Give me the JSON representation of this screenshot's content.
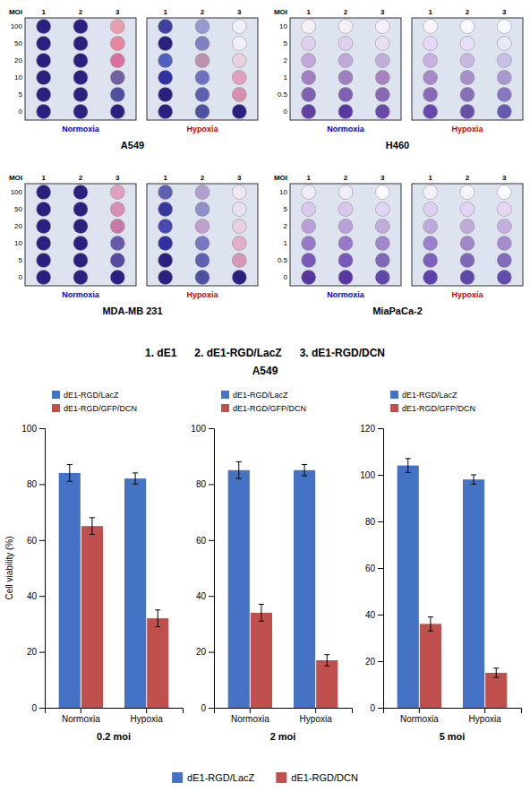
{
  "chart_data": [
    {
      "type": "plate",
      "title": "A549",
      "ylabel": "MOI",
      "x": [
        1,
        2,
        3
      ],
      "categories": [
        "100",
        "50",
        "20",
        "10",
        "5",
        "0"
      ],
      "series": [
        {
          "name": "Normoxia",
          "color": "#0000CC",
          "colors": [
            [
              "#2a2080",
              "#2a2080",
              "#e8a0b0"
            ],
            [
              "#2a2080",
              "#2a2080",
              "#e888a0"
            ],
            [
              "#2a2080",
              "#2a2080",
              "#d870a0"
            ],
            [
              "#2a2080",
              "#2a2080",
              "#7060a0"
            ],
            [
              "#2a2080",
              "#2a2080",
              "#5050a0"
            ],
            [
              "#2a2080",
              "#2a2080",
              "#2a2080"
            ]
          ]
        },
        {
          "name": "Hypoxia",
          "color": "#CC0000",
          "colors": [
            [
              "#4040a0",
              "#9898d0",
              "#f0f0f8"
            ],
            [
              "#2a2080",
              "#8080c0",
              "#f0f0f8"
            ],
            [
              "#5060c0",
              "#c090b0",
              "#e8d0e0"
            ],
            [
              "#3030a0",
              "#7070c0",
              "#e0a0c0"
            ],
            [
              "#2a2080",
              "#6060b0",
              "#d890b0"
            ],
            [
              "#2a2080",
              "#5050a0",
              "#2a2080"
            ]
          ]
        }
      ]
    },
    {
      "type": "plate",
      "title": "H460",
      "ylabel": "MOI",
      "x": [
        1,
        2,
        3
      ],
      "categories": [
        "10",
        "5",
        "2",
        "1",
        "0.5",
        "0"
      ],
      "series": [
        {
          "name": "Normoxia",
          "color": "#0000CC",
          "colors": [
            [
              "#f5f0f8",
              "#f5f0f8",
              "#f5f0f8"
            ],
            [
              "#e0d0f0",
              "#e0d0f0",
              "#e8e0f0"
            ],
            [
              "#c0a8d8",
              "#c0a8d8",
              "#c0b0d8"
            ],
            [
              "#a080c0",
              "#a080c0",
              "#a880c0"
            ],
            [
              "#8060b0",
              "#8060b0",
              "#8868b0"
            ],
            [
              "#6040a0",
              "#5838a0",
              "#6848a8"
            ]
          ]
        },
        {
          "name": "Hypoxia",
          "color": "#CC0000",
          "colors": [
            [
              "#f8f5ff",
              "#f8f8ff",
              "#f8f8ff"
            ],
            [
              "#e8d8f8",
              "#e8e0f8",
              "#e8e8f8"
            ],
            [
              "#c8b0e0",
              "#c8b8e0",
              "#c8c0e8"
            ],
            [
              "#a888c8",
              "#a890c8",
              "#a898d0"
            ],
            [
              "#8868b8",
              "#8870b8",
              "#8878c0"
            ],
            [
              "#6848a8",
              "#6850a8",
              "#6858b0"
            ]
          ]
        }
      ]
    },
    {
      "type": "plate",
      "title": "MDA-MB 231",
      "ylabel": "MOI",
      "x": [
        1,
        2,
        3
      ],
      "categories": [
        "100",
        "50",
        "20",
        "10",
        "5",
        "0"
      ],
      "series": [
        {
          "name": "Normoxia",
          "color": "#0000CC",
          "colors": [
            [
              "#2a2080",
              "#2a2080",
              "#e0a0c0"
            ],
            [
              "#2a2080",
              "#2a2080",
              "#d890b8"
            ],
            [
              "#2a2080",
              "#2a2080",
              "#c878a8"
            ],
            [
              "#2a2080",
              "#2a2080",
              "#6858a8"
            ],
            [
              "#2a2080",
              "#2a2080",
              "#5848a0"
            ],
            [
              "#2a2080",
              "#2a2080",
              "#2a2080"
            ]
          ]
        },
        {
          "name": "Hypoxia",
          "color": "#CC0000",
          "colors": [
            [
              "#6060b0",
              "#b0a0d0",
              "#f0e8f0"
            ],
            [
              "#3838a0",
              "#9090c8",
              "#e8e0f0"
            ],
            [
              "#4848b0",
              "#c0a0c8",
              "#e8d0e0"
            ],
            [
              "#3030a0",
              "#7878c0",
              "#e0b0c8"
            ],
            [
              "#2a2080",
              "#6060b0",
              "#d898b8"
            ],
            [
              "#2a2080",
              "#5050a0",
              "#2a2080"
            ]
          ]
        }
      ]
    },
    {
      "type": "plate",
      "title": "MiaPaCa-2",
      "ylabel": "MOI",
      "x": [
        1,
        2,
        3
      ],
      "categories": [
        "10",
        "5",
        "2",
        "1",
        "0.5",
        "0"
      ],
      "series": [
        {
          "name": "Normoxia",
          "color": "#0000CC",
          "colors": [
            [
              "#f0ecf8",
              "#f0ecf8",
              "#f8f8ff"
            ],
            [
              "#d8c8ec",
              "#d8c8ec",
              "#e0d4f4"
            ],
            [
              "#b8a0d8",
              "#b8a0d8",
              "#c0acd8"
            ],
            [
              "#9878c8",
              "#9878c8",
              "#a088c8"
            ],
            [
              "#7858b8",
              "#7858b8",
              "#8068b8"
            ],
            [
              "#5838a0",
              "#5838a0",
              "#6048a8"
            ]
          ]
        },
        {
          "name": "Hypoxia",
          "color": "#CC0000",
          "colors": [
            [
              "#f4f0f8",
              "#f8f4ff",
              "#f8f8ff"
            ],
            [
              "#dcd0f0",
              "#e0d4f4",
              "#e4d8f4"
            ],
            [
              "#bca8dc",
              "#c0acd8",
              "#c4b0dc"
            ],
            [
              "#9c80cc",
              "#a088c8",
              "#a48ccc"
            ],
            [
              "#7c60bc",
              "#8068b8",
              "#846cbc"
            ],
            [
              "#5c40ac",
              "#6048a8",
              "#644cac"
            ]
          ]
        }
      ]
    },
    {
      "type": "bar",
      "title": "1. dE1      2. dE1-RGD/LacZ      3. dE1-RGD/DCN",
      "subtitle": "A549",
      "legend": "bottom",
      "grid": false,
      "series": [
        {
          "name": "dE1-RGD/LacZ",
          "color": "#4472C4"
        },
        {
          "name": "dE1-RGD/DCN",
          "color": "#C0504D"
        }
      ],
      "panels": [
        {
          "xlabel": "0.2 moi",
          "ylabel": "Cell viability (%)",
          "categories": [
            "Normoxia",
            "Hypoxia"
          ],
          "ylim": [
            0,
            100
          ],
          "yticks": [
            0,
            20,
            40,
            60,
            80,
            100
          ],
          "series": [
            {
              "name": "dE1-RGD/LacZ",
              "values": [
                84,
                82
              ],
              "errors": [
                3,
                2
              ]
            },
            {
              "name": "dE1-RGD/GFP/DCN",
              "values": [
                65,
                32
              ],
              "errors": [
                3,
                3
              ]
            }
          ]
        },
        {
          "xlabel": "2 moi",
          "categories": [
            "Normoxia",
            "Hypoxia"
          ],
          "ylim": [
            0,
            100
          ],
          "yticks": [
            0,
            20,
            40,
            60,
            80,
            100
          ],
          "series": [
            {
              "name": "dE1-RGD/LacZ",
              "values": [
                85,
                85
              ],
              "errors": [
                3,
                2
              ]
            },
            {
              "name": "dE1-RGD/GFP/DCN",
              "values": [
                34,
                17
              ],
              "errors": [
                3,
                2
              ]
            }
          ]
        },
        {
          "xlabel": "5 moi",
          "categories": [
            "Normoxia",
            "Hypoxia"
          ],
          "ylim": [
            0,
            120
          ],
          "yticks": [
            0,
            20,
            40,
            60,
            80,
            100,
            120
          ],
          "series": [
            {
              "name": "dE1-RGD/LacZ",
              "values": [
                104,
                98
              ],
              "errors": [
                3,
                2
              ]
            },
            {
              "name": "dE1-RGD/GFP/DCN",
              "values": [
                36,
                15
              ],
              "errors": [
                3,
                2
              ]
            }
          ]
        }
      ]
    }
  ]
}
